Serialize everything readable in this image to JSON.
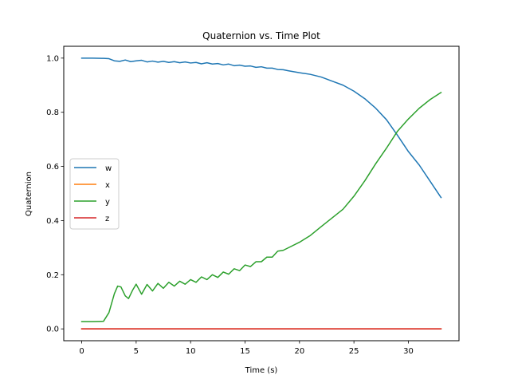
{
  "chart_data": {
    "type": "line",
    "title": "Quaternion vs. Time Plot",
    "xlabel": "Time (s)",
    "ylabel": "Quaternion",
    "xlim": [
      -1.65,
      34.65
    ],
    "ylim": [
      -0.0437,
      1.0437
    ],
    "xticks": [
      0,
      5,
      10,
      15,
      20,
      25,
      30
    ],
    "yticks": [
      0.0,
      0.2,
      0.4,
      0.6,
      0.8,
      1.0
    ],
    "xtick_labels": [
      "0",
      "5",
      "10",
      "15",
      "20",
      "25",
      "30"
    ],
    "ytick_labels": [
      "0.0",
      "0.2",
      "0.4",
      "0.6",
      "0.8",
      "1.0"
    ],
    "grid": false,
    "legend_position": "center-left",
    "series": [
      {
        "name": "w",
        "color": "#1f77b4",
        "points": [
          [
            0,
            1.0
          ],
          [
            1,
            1.0
          ],
          [
            2,
            0.999
          ],
          [
            2.5,
            0.998
          ],
          [
            3,
            0.99
          ],
          [
            3.5,
            0.988
          ],
          [
            4,
            0.993
          ],
          [
            4.5,
            0.987
          ],
          [
            5,
            0.99
          ],
          [
            5.5,
            0.992
          ],
          [
            6,
            0.986
          ],
          [
            6.5,
            0.989
          ],
          [
            7,
            0.985
          ],
          [
            7.5,
            0.988
          ],
          [
            8,
            0.984
          ],
          [
            8.5,
            0.987
          ],
          [
            9,
            0.983
          ],
          [
            9.5,
            0.986
          ],
          [
            10,
            0.982
          ],
          [
            10.5,
            0.984
          ],
          [
            11,
            0.979
          ],
          [
            11.5,
            0.983
          ],
          [
            12,
            0.978
          ],
          [
            12.5,
            0.98
          ],
          [
            13,
            0.975
          ],
          [
            13.5,
            0.978
          ],
          [
            14,
            0.972
          ],
          [
            14.5,
            0.974
          ],
          [
            15,
            0.97
          ],
          [
            15.5,
            0.971
          ],
          [
            16,
            0.966
          ],
          [
            16.5,
            0.968
          ],
          [
            17,
            0.963
          ],
          [
            17.5,
            0.963
          ],
          [
            18,
            0.958
          ],
          [
            18.5,
            0.957
          ],
          [
            19,
            0.953
          ],
          [
            20,
            0.946
          ],
          [
            21,
            0.94
          ],
          [
            22,
            0.93
          ],
          [
            23,
            0.915
          ],
          [
            24,
            0.9
          ],
          [
            25,
            0.878
          ],
          [
            26,
            0.85
          ],
          [
            27,
            0.815
          ],
          [
            28,
            0.772
          ],
          [
            29,
            0.715
          ],
          [
            30,
            0.655
          ],
          [
            31,
            0.605
          ],
          [
            32,
            0.545
          ],
          [
            33,
            0.485
          ]
        ]
      },
      {
        "name": "x",
        "color": "#ff7f0e",
        "points": [
          [
            0,
            0.0
          ],
          [
            33,
            0.0
          ]
        ]
      },
      {
        "name": "y",
        "color": "#2ca02c",
        "points": [
          [
            0,
            0.027
          ],
          [
            1,
            0.027
          ],
          [
            2,
            0.028
          ],
          [
            2.5,
            0.06
          ],
          [
            3,
            0.13
          ],
          [
            3.3,
            0.158
          ],
          [
            3.6,
            0.155
          ],
          [
            4,
            0.122
          ],
          [
            4.3,
            0.112
          ],
          [
            4.7,
            0.145
          ],
          [
            5,
            0.165
          ],
          [
            5.5,
            0.128
          ],
          [
            6,
            0.164
          ],
          [
            6.5,
            0.14
          ],
          [
            7,
            0.168
          ],
          [
            7.5,
            0.15
          ],
          [
            8,
            0.172
          ],
          [
            8.5,
            0.158
          ],
          [
            9,
            0.176
          ],
          [
            9.5,
            0.165
          ],
          [
            10,
            0.182
          ],
          [
            10.5,
            0.172
          ],
          [
            11,
            0.192
          ],
          [
            11.5,
            0.182
          ],
          [
            12,
            0.2
          ],
          [
            12.5,
            0.19
          ],
          [
            13,
            0.21
          ],
          [
            13.5,
            0.202
          ],
          [
            14,
            0.222
          ],
          [
            14.5,
            0.215
          ],
          [
            15,
            0.236
          ],
          [
            15.5,
            0.23
          ],
          [
            16,
            0.248
          ],
          [
            16.5,
            0.248
          ],
          [
            17,
            0.265
          ],
          [
            17.5,
            0.265
          ],
          [
            18,
            0.287
          ],
          [
            18.5,
            0.29
          ],
          [
            19,
            0.3
          ],
          [
            20,
            0.32
          ],
          [
            21,
            0.345
          ],
          [
            22,
            0.378
          ],
          [
            23,
            0.41
          ],
          [
            24,
            0.442
          ],
          [
            25,
            0.49
          ],
          [
            26,
            0.547
          ],
          [
            27,
            0.61
          ],
          [
            28,
            0.668
          ],
          [
            29,
            0.73
          ],
          [
            30,
            0.775
          ],
          [
            31,
            0.815
          ],
          [
            32,
            0.847
          ],
          [
            33,
            0.873
          ]
        ]
      },
      {
        "name": "z",
        "color": "#d62728",
        "points": [
          [
            0,
            0.0
          ],
          [
            33,
            0.0
          ]
        ]
      }
    ]
  }
}
